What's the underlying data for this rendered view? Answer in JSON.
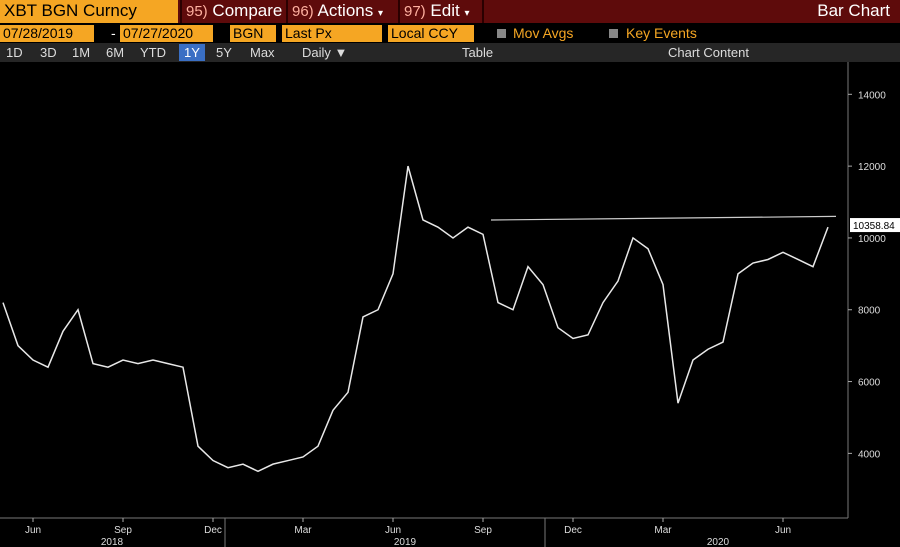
{
  "header": {
    "ticker": "XBT BGN Curncy",
    "menu": [
      {
        "num": "95)",
        "label": "Compare"
      },
      {
        "num": "96)",
        "label": "Actions"
      },
      {
        "num": "97)",
        "label": "Edit"
      }
    ],
    "view": "Bar Chart"
  },
  "controls": {
    "start_date": "07/28/2019",
    "dash": "-",
    "end_date": "07/27/2020",
    "source": "BGN",
    "field": "Last Px",
    "currency": "Local CCY",
    "mov_avgs": "Mov Avgs",
    "key_events": "Key Events"
  },
  "toolbar": {
    "periods": [
      "1D",
      "3D",
      "1M",
      "6M",
      "YTD",
      "1Y",
      "5Y",
      "Max"
    ],
    "frequency": "Daily",
    "table": "Table",
    "chart_content": "Chart Content"
  },
  "chart_data": {
    "type": "line",
    "color": "#e8e8e8",
    "categories": [
      null,
      null,
      "Jun",
      null,
      null,
      null,
      null,
      null,
      "Sep",
      null,
      null,
      null,
      null,
      null,
      "Dec",
      null,
      null,
      null,
      null,
      null,
      "Mar",
      null,
      null,
      null,
      null,
      null,
      "Jun",
      null,
      null,
      null,
      null,
      null,
      "Sep",
      null,
      null,
      null,
      null,
      null,
      "Dec",
      null,
      null,
      null,
      null,
      null,
      "Mar",
      null,
      null,
      null,
      null,
      null,
      null,
      null,
      "Jun",
      null,
      null,
      null
    ],
    "values": [
      8200,
      7000,
      6600,
      6400,
      7400,
      8000,
      6500,
      6400,
      6600,
      6500,
      6600,
      6500,
      6400,
      4200,
      3800,
      3600,
      3700,
      3500,
      3700,
      3800,
      3900,
      4200,
      5200,
      5700,
      7800,
      8000,
      9000,
      12000,
      10500,
      10300,
      10000,
      10300,
      10100,
      8200,
      8000,
      9200,
      8700,
      7500,
      7200,
      7300,
      8200,
      8800,
      10000,
      9700,
      8700,
      5400,
      6600,
      6900,
      7100,
      9000,
      9300,
      9400,
      9600,
      9400,
      9200,
      10300
    ],
    "years": [
      "2018",
      "2019",
      "2020"
    ],
    "trendline": [
      10500,
      10600
    ],
    "last_price": 10358.84,
    "ylim": [
      2200,
      14900
    ],
    "yticks": [
      4000,
      6000,
      8000,
      10000,
      12000,
      14000
    ]
  }
}
